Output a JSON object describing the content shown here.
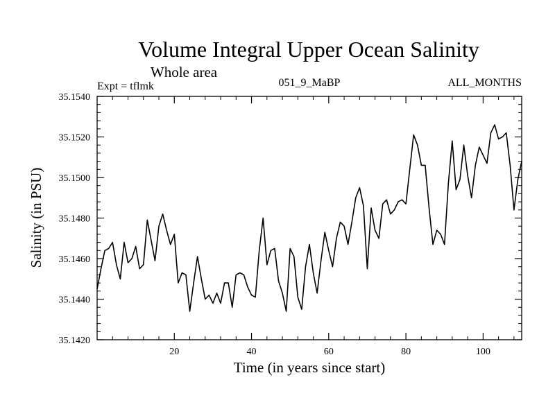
{
  "chart_data": {
    "type": "line",
    "title": "Volume Integral Upper Ocean Salinity",
    "subtitle": "Whole area",
    "header_left": "Expt = tflmk",
    "header_center": "051_9_MaBP",
    "header_right": "ALL_MONTHS",
    "xlabel": "Time (in years since start)",
    "ylabel": "Salinity (in PSU)",
    "xlim": [
      0,
      110
    ],
    "ylim": [
      35.142,
      35.154
    ],
    "x_ticks": [
      20,
      40,
      60,
      80,
      100
    ],
    "x_tick_labels": [
      "20",
      "40",
      "60",
      "80",
      "100"
    ],
    "y_ticks": [
      35.142,
      35.144,
      35.146,
      35.148,
      35.15,
      35.152,
      35.154
    ],
    "y_tick_labels": [
      "35.1420",
      "35.1440",
      "35.1460",
      "35.1480",
      "35.1500",
      "35.1520",
      "35.1540"
    ],
    "line_color": "#000000",
    "series": [
      {
        "name": "salinity",
        "x": [
          0,
          1,
          2,
          3,
          4,
          5,
          6,
          7,
          8,
          9,
          10,
          11,
          12,
          13,
          14,
          15,
          16,
          17,
          18,
          19,
          20,
          21,
          22,
          23,
          24,
          25,
          26,
          27,
          28,
          29,
          30,
          31,
          32,
          33,
          34,
          35,
          36,
          37,
          38,
          39,
          40,
          41,
          42,
          43,
          44,
          45,
          46,
          47,
          48,
          49,
          50,
          51,
          52,
          53,
          54,
          55,
          56,
          57,
          58,
          59,
          60,
          61,
          62,
          63,
          64,
          65,
          66,
          67,
          68,
          69,
          70,
          71,
          72,
          73,
          74,
          75,
          76,
          77,
          78,
          79,
          80,
          81,
          82,
          83,
          84,
          85,
          86,
          87,
          88,
          89,
          90,
          91,
          92,
          93,
          94,
          95,
          96,
          97,
          98,
          99,
          100,
          101,
          102,
          103,
          104,
          105,
          106,
          107,
          108,
          109,
          110
        ],
        "values": [
          35.1445,
          35.1455,
          35.1464,
          35.1465,
          35.1468,
          35.1457,
          35.145,
          35.1468,
          35.1458,
          35.146,
          35.1466,
          35.1455,
          35.1457,
          35.1479,
          35.1469,
          35.1459,
          35.1476,
          35.1482,
          35.1474,
          35.1467,
          35.1472,
          35.1448,
          35.1453,
          35.1452,
          35.1434,
          35.1448,
          35.1461,
          35.145,
          35.144,
          35.1442,
          35.1438,
          35.1443,
          35.1438,
          35.1448,
          35.1448,
          35.1436,
          35.1452,
          35.1453,
          35.1452,
          35.1446,
          35.1442,
          35.1441,
          35.1464,
          35.148,
          35.1457,
          35.1464,
          35.1465,
          35.1449,
          35.1443,
          35.1434,
          35.1465,
          35.1461,
          35.1441,
          35.1435,
          35.1456,
          35.1467,
          35.1453,
          35.1443,
          35.1459,
          35.1473,
          35.1464,
          35.1456,
          35.147,
          35.1478,
          35.1476,
          35.1467,
          35.1478,
          35.149,
          35.1495,
          35.1486,
          35.1455,
          35.1485,
          35.1474,
          35.147,
          35.1487,
          35.1489,
          35.1482,
          35.1484,
          35.1488,
          35.1489,
          35.1487,
          35.1504,
          35.1521,
          35.1516,
          35.1506,
          35.1506,
          35.1485,
          35.1467,
          35.1474,
          35.1472,
          35.1467,
          35.1497,
          35.1518,
          35.1494,
          35.1499,
          35.1516,
          35.1501,
          35.149,
          35.1506,
          35.1515,
          35.1511,
          35.1507,
          35.1522,
          35.1526,
          35.1519,
          35.152,
          35.1522,
          35.1506,
          35.1484,
          35.1499,
          35.1508
        ]
      }
    ]
  }
}
